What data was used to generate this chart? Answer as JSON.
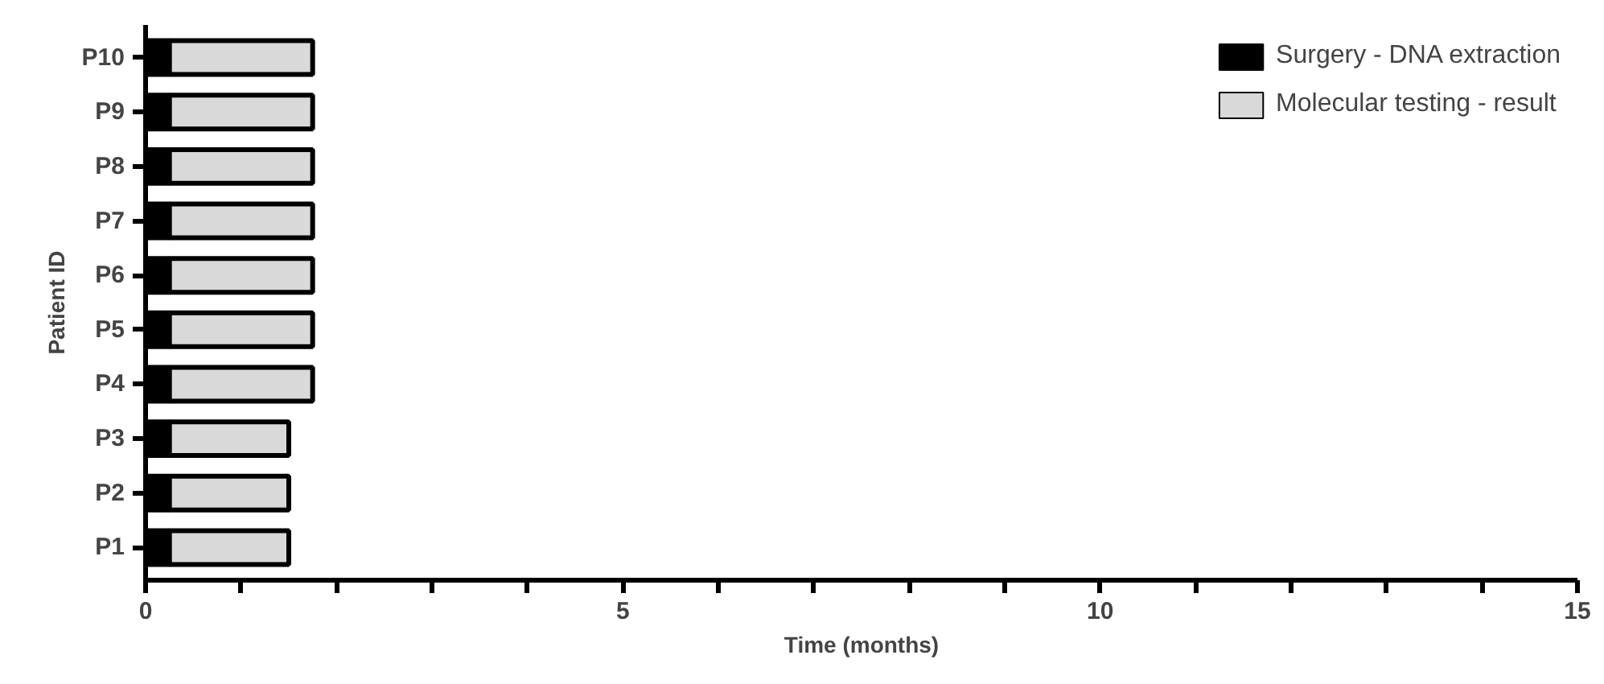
{
  "chart_data": {
    "type": "bar",
    "orientation": "horizontal",
    "stacked": true,
    "xlabel": "Time (months)",
    "ylabel": "Patient ID",
    "categories": [
      "P10",
      "P9",
      "P8",
      "P7",
      "P6",
      "P5",
      "P4",
      "P3",
      "P2",
      "P1"
    ],
    "series": [
      {
        "name": "Surgery - DNA extraction",
        "color": "#000000",
        "values": [
          0.25,
          0.25,
          0.25,
          0.25,
          0.25,
          0.25,
          0.25,
          0.25,
          0.25,
          0.25
        ]
      },
      {
        "name": "Molecular testing - result",
        "color": "#d9d9d9",
        "values": [
          1.5,
          1.5,
          1.5,
          1.5,
          1.5,
          1.5,
          1.5,
          1.25,
          1.25,
          1.25
        ]
      }
    ],
    "xlim": [
      0,
      15
    ],
    "xticks": [
      0,
      {
        "value": 1,
        "label": null
      },
      {
        "value": 2,
        "label": null
      },
      {
        "value": 3,
        "label": null
      },
      {
        "value": 4,
        "label": null
      },
      5,
      {
        "value": 6,
        "label": null
      },
      {
        "value": 7,
        "label": null
      },
      {
        "value": 8,
        "label": null
      },
      {
        "value": 9,
        "label": null
      },
      10,
      {
        "value": 11,
        "label": null
      },
      {
        "value": 12,
        "label": null
      },
      {
        "value": 13,
        "label": null
      },
      {
        "value": 14,
        "label": null
      },
      15
    ],
    "grid": false,
    "legend": "top right"
  }
}
